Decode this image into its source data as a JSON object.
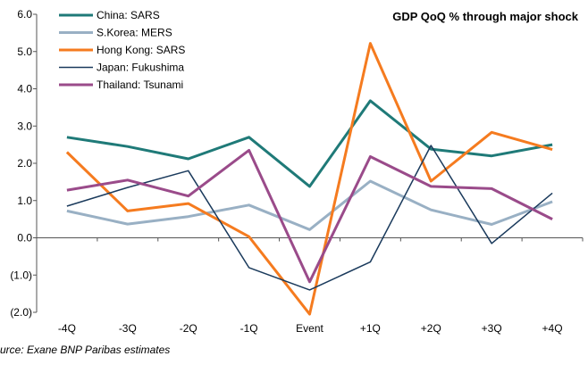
{
  "chart_data": {
    "type": "line",
    "title": "GDP QoQ % through major shock",
    "source": "urce: Exane BNP Paribas estimates",
    "categories": [
      "-4Q",
      "-3Q",
      "-2Q",
      "-1Q",
      "Event",
      "+1Q",
      "+2Q",
      "+3Q",
      "+4Q"
    ],
    "y_ticks": [
      "6.0",
      "5.0",
      "4.0",
      "3.0",
      "2.0",
      "1.0",
      "0.0",
      "(1.0)",
      "(2.0)"
    ],
    "ylim": [
      -2.0,
      6.0
    ],
    "xlabel": "",
    "ylabel": "",
    "grid": false,
    "legend_position": "top-left",
    "series": [
      {
        "name": "China: SARS",
        "color": "#1f7a78",
        "width": 3,
        "values": [
          2.7,
          2.45,
          2.12,
          2.7,
          1.38,
          3.68,
          2.38,
          2.2,
          2.5
        ]
      },
      {
        "name": "S.Korea: MERS",
        "color": "#99b0c4",
        "width": 3,
        "values": [
          0.72,
          0.37,
          0.57,
          0.88,
          0.22,
          1.52,
          0.75,
          0.36,
          0.97
        ]
      },
      {
        "name": "Hong Kong: SARS",
        "color": "#f57b1f",
        "width": 3,
        "values": [
          2.3,
          0.72,
          0.92,
          0.03,
          -2.05,
          5.22,
          1.52,
          2.83,
          2.37
        ]
      },
      {
        "name": "Japan: Fukushima",
        "color": "#1a3a5c",
        "width": 1.5,
        "values": [
          0.85,
          1.35,
          1.8,
          -0.8,
          -1.4,
          -0.65,
          2.48,
          -0.15,
          1.2
        ]
      },
      {
        "name": "Thailand: Tsunami",
        "color": "#9a4b8a",
        "width": 3,
        "values": [
          1.28,
          1.55,
          1.12,
          2.35,
          -1.18,
          2.18,
          1.38,
          1.32,
          0.5
        ]
      }
    ]
  }
}
